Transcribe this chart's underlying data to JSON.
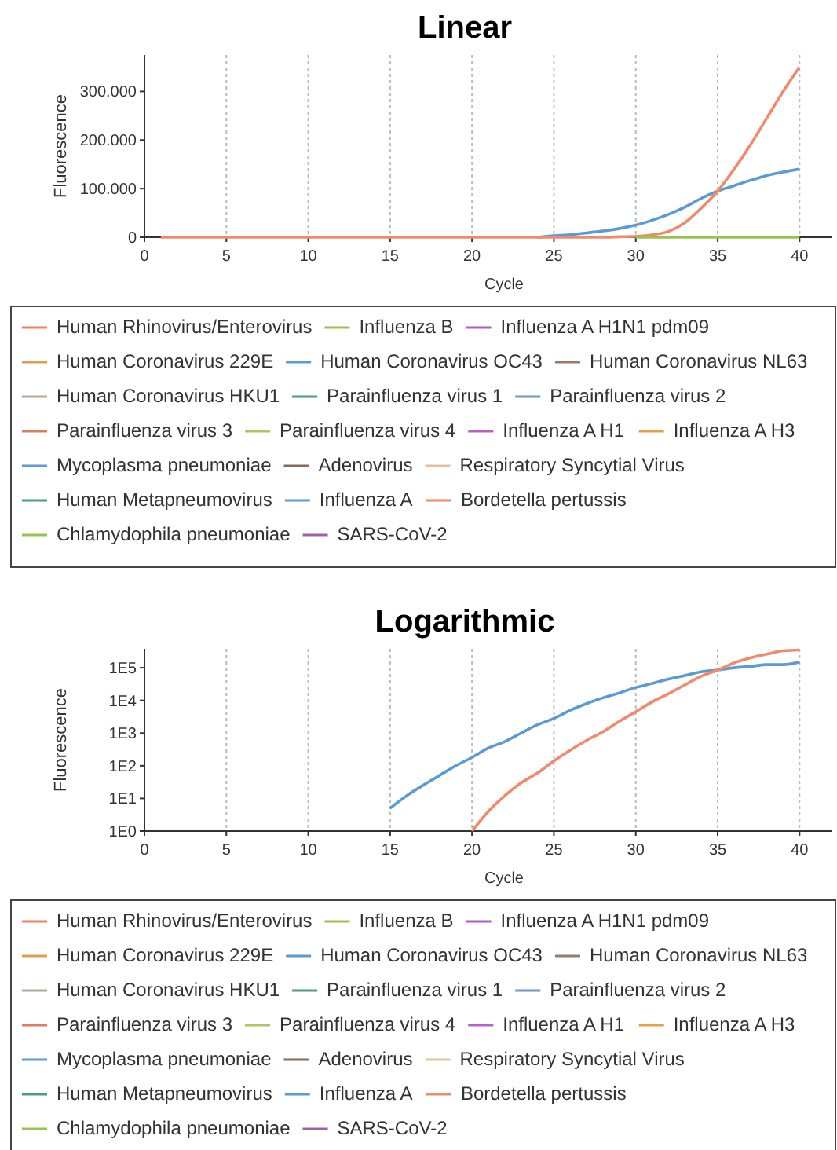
{
  "chart_data": [
    {
      "type": "line",
      "title": "Linear",
      "xlabel": "Cycle",
      "ylabel": "Fluorescence",
      "xlim": [
        0,
        42
      ],
      "xticks": [
        0,
        5,
        10,
        15,
        20,
        25,
        30,
        35,
        40
      ],
      "ylim": [
        0,
        375000
      ],
      "yticks": [
        0,
        {
          "value": 100000,
          "label": "100.000"
        },
        {
          "value": 200000,
          "label": "200.000"
        },
        {
          "value": 300000,
          "label": "300.000"
        }
      ],
      "grid": "x",
      "legend": "bottom",
      "line_style": "solid",
      "marker": "none",
      "series": [
        {
          "name": "Human Rhinovirus/Enterovirus",
          "color": "#f08060"
        },
        {
          "name": "Influenza B",
          "color": "#9bc34a"
        },
        {
          "name": "Influenza A H1N1 pdm09",
          "color": "#b05cc0"
        },
        {
          "name": "Human Coronavirus 229E",
          "color": "#d9a050"
        },
        {
          "name": "Human Coronavirus OC43",
          "color": "#5b9bd5"
        },
        {
          "name": "Human Coronavirus NL63",
          "color": "#9a7a6a"
        },
        {
          "name": "Human Coronavirus HKU1",
          "color": "#b8a898"
        },
        {
          "name": "Parainfluenza virus 1",
          "color": "#4f9a80"
        },
        {
          "name": "Parainfluenza virus 2",
          "color": "#6a9ac8"
        },
        {
          "name": "Parainfluenza virus 3",
          "color": "#e07a60"
        },
        {
          "name": "Parainfluenza virus 4",
          "color": "#a8c860"
        },
        {
          "name": "Influenza A H1",
          "color": "#b860c8"
        },
        {
          "name": "Influenza A H3",
          "color": "#e8a040"
        },
        {
          "name": "Mycoplasma pneumoniae",
          "color": "#5b9bd5",
          "x": [
            24,
            25,
            26,
            27,
            28,
            29,
            30,
            31,
            32,
            33,
            34,
            35,
            36,
            37,
            38,
            39,
            40
          ],
          "values": [
            0,
            3000,
            5000,
            9000,
            13000,
            18000,
            25000,
            35000,
            47000,
            62000,
            80000,
            95000,
            106000,
            117000,
            127000,
            134000,
            140000
          ]
        },
        {
          "name": "Adenovirus",
          "color": "#8a6a50"
        },
        {
          "name": "Respiratory Syncytial Virus",
          "color": "#e8c0a0"
        },
        {
          "name": "Human Metapneumovirus",
          "color": "#4f9a80"
        },
        {
          "name": "Influenza A",
          "color": "#5b9bd5"
        },
        {
          "name": "Bordetella pertussis",
          "color": "#f08a6a",
          "x": [
            1,
            5,
            10,
            15,
            20,
            25,
            28,
            29,
            30,
            31,
            32,
            33,
            34,
            35,
            36,
            37,
            38,
            39,
            40
          ],
          "values": [
            0,
            0,
            0,
            0,
            0,
            0,
            0,
            1000,
            2000,
            5000,
            12000,
            30000,
            60000,
            95000,
            140000,
            190000,
            245000,
            300000,
            350000
          ]
        },
        {
          "name": "Chlamydophila pneumoniae",
          "color": "#9bc34a",
          "x": [
            30,
            35,
            40
          ],
          "values": [
            0,
            0,
            0
          ]
        },
        {
          "name": "SARS-CoV-2",
          "color": "#a060a8"
        }
      ]
    },
    {
      "type": "line",
      "title": "Logarithmic",
      "xlabel": "Cycle",
      "ylabel": "Fluorescence",
      "log": "y",
      "xlim": [
        0,
        42
      ],
      "xticks": [
        0,
        5,
        10,
        15,
        20,
        25,
        30,
        35,
        40
      ],
      "ylim": [
        1,
        380000
      ],
      "yticks": [
        {
          "value": 1,
          "label": "1E0"
        },
        {
          "value": 10,
          "label": "1E1"
        },
        {
          "value": 100,
          "label": "1E2"
        },
        {
          "value": 1000,
          "label": "1E3"
        },
        {
          "value": 10000,
          "label": "1E4"
        },
        {
          "value": 100000,
          "label": "1E5"
        }
      ],
      "grid": "x",
      "legend": "bottom",
      "line_style": "solid",
      "marker": "none",
      "series": [
        {
          "name": "Human Rhinovirus/Enterovirus",
          "color": "#f08060"
        },
        {
          "name": "Influenza B",
          "color": "#9bc34a"
        },
        {
          "name": "Influenza A H1N1 pdm09",
          "color": "#b05cc0"
        },
        {
          "name": "Human Coronavirus 229E",
          "color": "#d9a050"
        },
        {
          "name": "Human Coronavirus OC43",
          "color": "#5b9bd5"
        },
        {
          "name": "Human Coronavirus NL63",
          "color": "#9a7a6a"
        },
        {
          "name": "Human Coronavirus HKU1",
          "color": "#b8a898"
        },
        {
          "name": "Parainfluenza virus 1",
          "color": "#4f9a80"
        },
        {
          "name": "Parainfluenza virus 2",
          "color": "#6a9ac8"
        },
        {
          "name": "Parainfluenza virus 3",
          "color": "#e07a60"
        },
        {
          "name": "Parainfluenza virus 4",
          "color": "#a8c860"
        },
        {
          "name": "Influenza A H1",
          "color": "#b860c8"
        },
        {
          "name": "Influenza A H3",
          "color": "#e8a040"
        },
        {
          "name": "Mycoplasma pneumoniae",
          "color": "#5b9bd5",
          "x": [
            15,
            16,
            17,
            18,
            19,
            20,
            21,
            22,
            23,
            24,
            25,
            26,
            27,
            28,
            29,
            30,
            31,
            32,
            33,
            34,
            35,
            36,
            37,
            38,
            39,
            40
          ],
          "values": [
            5,
            12,
            25,
            50,
            100,
            180,
            350,
            550,
            1000,
            1800,
            2800,
            5000,
            8000,
            12000,
            17000,
            25000,
            33000,
            45000,
            58000,
            75000,
            85000,
            100000,
            110000,
            125000,
            125000,
            150000
          ]
        },
        {
          "name": "Adenovirus",
          "color": "#8a6a50"
        },
        {
          "name": "Respiratory Syncytial Virus",
          "color": "#e8c0a0"
        },
        {
          "name": "Human Metapneumovirus",
          "color": "#4f9a80"
        },
        {
          "name": "Influenza A",
          "color": "#5b9bd5"
        },
        {
          "name": "Bordetella pertussis",
          "color": "#f08a6a",
          "x": [
            20,
            21,
            22,
            23,
            24,
            25,
            26,
            27,
            28,
            29,
            30,
            31,
            32,
            33,
            34,
            35,
            36,
            37,
            38,
            39,
            40
          ],
          "values": [
            1,
            4,
            12,
            30,
            60,
            140,
            300,
            600,
            1100,
            2300,
            4500,
            9000,
            16000,
            30000,
            55000,
            85000,
            140000,
            200000,
            260000,
            330000,
            350000
          ]
        },
        {
          "name": "Chlamydophila pneumoniae",
          "color": "#9bc34a"
        },
        {
          "name": "SARS-CoV-2",
          "color": "#a060a8"
        }
      ]
    }
  ]
}
